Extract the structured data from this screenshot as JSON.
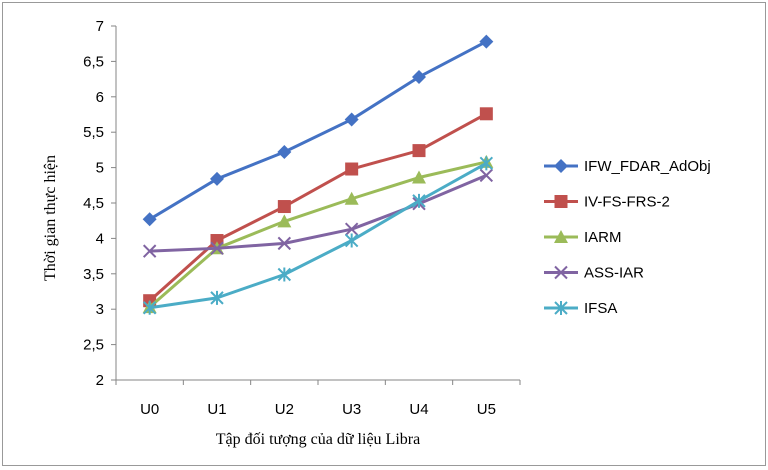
{
  "chart_data": {
    "type": "line",
    "title": "",
    "xlabel": "Tập đối tượng của dữ liệu Libra",
    "ylabel": "Thời gian thực hiện",
    "categories": [
      "U0",
      "U1",
      "U2",
      "U3",
      "U4",
      "U5"
    ],
    "ylim": [
      2,
      7
    ],
    "ytick_step": 0.5,
    "ytick_labels": [
      "2",
      "2,5",
      "3",
      "3,5",
      "4",
      "4,5",
      "5",
      "5,5",
      "6",
      "6,5",
      "7"
    ],
    "grid": false,
    "legend_position": "right",
    "series": [
      {
        "name": "IFW_FDAR_AdObj",
        "color": "#4472C4",
        "marker": "diamond",
        "values": [
          4.27,
          4.84,
          5.22,
          5.68,
          6.28,
          6.78
        ]
      },
      {
        "name": "IV-FS-FRS-2",
        "color": "#C0504D",
        "marker": "square",
        "values": [
          3.12,
          3.97,
          4.45,
          4.98,
          5.24,
          5.76
        ]
      },
      {
        "name": "IARM",
        "color": "#9BBB59",
        "marker": "triangle",
        "values": [
          3.03,
          3.86,
          4.24,
          4.56,
          4.86,
          5.08
        ]
      },
      {
        "name": "ASS-IAR",
        "color": "#8064A2",
        "marker": "x",
        "values": [
          3.82,
          3.86,
          3.93,
          4.13,
          4.49,
          4.89
        ]
      },
      {
        "name": "IFSA",
        "color": "#4BACC6",
        "marker": "star",
        "values": [
          3.02,
          3.16,
          3.49,
          3.97,
          4.53,
          5.06
        ]
      }
    ]
  }
}
